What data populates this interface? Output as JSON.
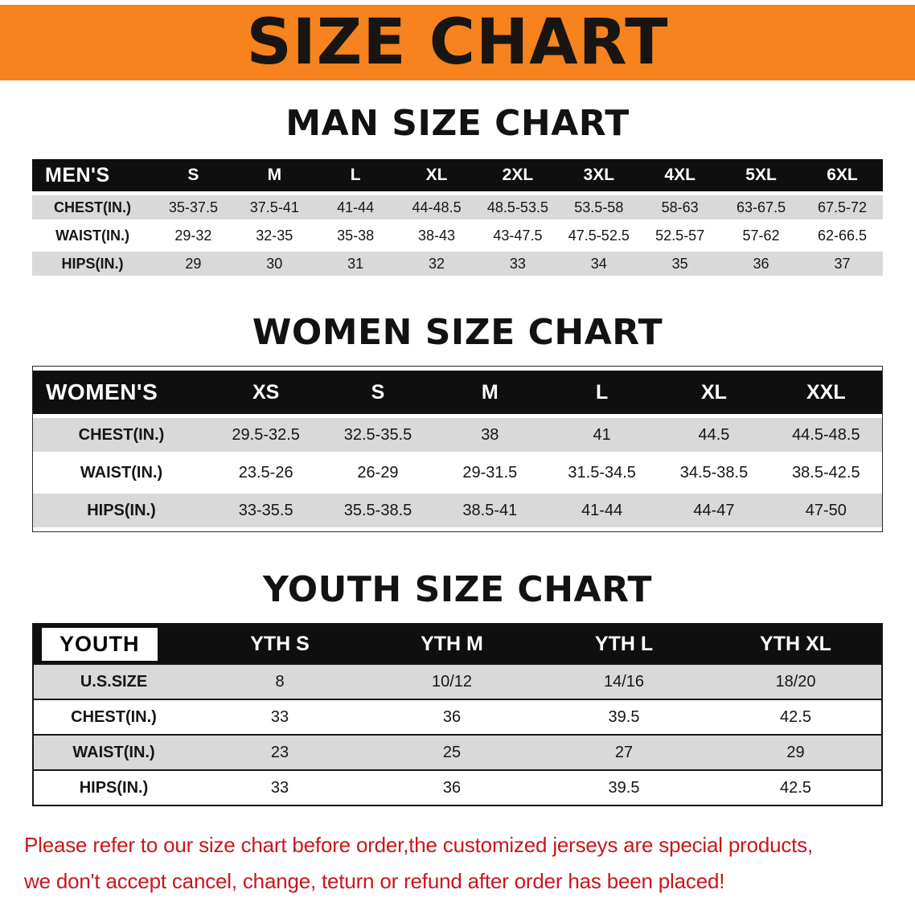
{
  "banner": {
    "title": "SIZE CHART",
    "bg_color": "#F6831D",
    "text_color": "#181512"
  },
  "colors": {
    "table_header_bar": "#0F0F0F",
    "row_stripe": "#D9D9D9",
    "footer_text": "#C9161C"
  },
  "chart_data": [
    {
      "type": "table",
      "title": "MAN SIZE CHART",
      "corner": "MEN'S",
      "columns": [
        "S",
        "M",
        "L",
        "XL",
        "2XL",
        "3XL",
        "4XL",
        "5XL",
        "6XL"
      ],
      "rows": [
        {
          "label": "CHEST(IN.)",
          "values": [
            "35-37.5",
            "37.5-41",
            "41-44",
            "44-48.5",
            "48.5-53.5",
            "53.5-58",
            "58-63",
            "63-67.5",
            "67.5-72"
          ]
        },
        {
          "label": "WAIST(IN.)",
          "values": [
            "29-32",
            "32-35",
            "35-38",
            "38-43",
            "43-47.5",
            "47.5-52.5",
            "52.5-57",
            "57-62",
            "62-66.5"
          ]
        },
        {
          "label": "HIPS(IN.)",
          "values": [
            "29",
            "30",
            "31",
            "32",
            "33",
            "34",
            "35",
            "36",
            "37"
          ]
        }
      ]
    },
    {
      "type": "table",
      "title": "WOMEN SIZE CHART",
      "corner": "WOMEN'S",
      "columns": [
        "XS",
        "S",
        "M",
        "L",
        "XL",
        "XXL"
      ],
      "rows": [
        {
          "label": "CHEST(IN.)",
          "values": [
            "29.5-32.5",
            "32.5-35.5",
            "38",
            "41",
            "44.5",
            "44.5-48.5"
          ]
        },
        {
          "label": "WAIST(IN.)",
          "values": [
            "23.5-26",
            "26-29",
            "29-31.5",
            "31.5-34.5",
            "34.5-38.5",
            "38.5-42.5"
          ]
        },
        {
          "label": "HIPS(IN.)",
          "values": [
            "33-35.5",
            "35.5-38.5",
            "38.5-41",
            "41-44",
            "44-47",
            "47-50"
          ]
        }
      ]
    },
    {
      "type": "table",
      "title": "YOUTH SIZE CHART",
      "corner": "YOUTH",
      "columns": [
        "YTH S",
        "YTH M",
        "YTH L",
        "YTH XL"
      ],
      "rows": [
        {
          "label": "U.S.SIZE",
          "values": [
            "8",
            "10/12",
            "14/16",
            "18/20"
          ]
        },
        {
          "label": "CHEST(IN.)",
          "values": [
            "33",
            "36",
            "39.5",
            "42.5"
          ]
        },
        {
          "label": "WAIST(IN.)",
          "values": [
            "23",
            "25",
            "27",
            "29"
          ]
        },
        {
          "label": "HIPS(IN.)",
          "values": [
            "33",
            "36",
            "39.5",
            "42.5"
          ]
        }
      ]
    }
  ],
  "footer": {
    "line1": "Please refer to our size chart before order,the customized jerseys are special products,",
    "line2": "we don't accept cancel, change, teturn or refund after order has been placed!",
    "text_color": "#C9161C"
  }
}
